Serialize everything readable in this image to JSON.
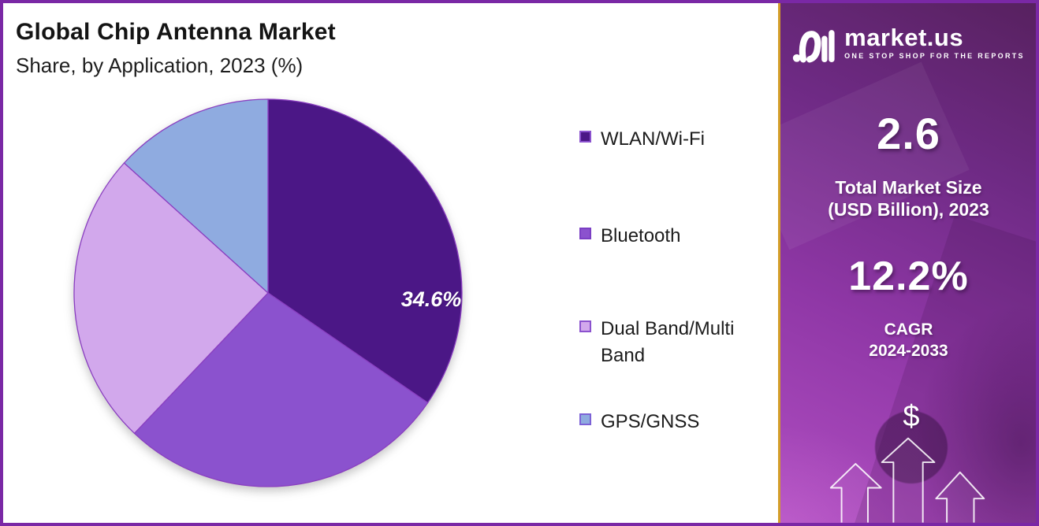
{
  "header": {
    "title": "Global Chip Antenna Market",
    "subtitle": "Share, by Application, 2023 (%)"
  },
  "chart_data": {
    "type": "pie",
    "title": "Global Chip Antenna Market",
    "subtitle": "Share, by Application, 2023 (%)",
    "unit": "percent",
    "start_angle_deg": 0,
    "direction": "clockwise",
    "legend_position": "right",
    "slice_stroke": "#8A3FC0",
    "segments": [
      {
        "label": "WLAN/Wi-Fi",
        "value": 34.6,
        "display_label": "34.6%",
        "color": "#4B1786",
        "swatch_border": "#8B52CE"
      },
      {
        "label": "Bluetooth",
        "value": 27.5,
        "display_label": "",
        "color": "#8B52CE",
        "swatch_border": "#7B3FC4"
      },
      {
        "label": "Dual Band/Multi Band",
        "value": 24.6,
        "display_label": "",
        "color": "#D2A8EC",
        "swatch_border": "#8B52CE"
      },
      {
        "label": "GPS/GNSS",
        "value": 13.3,
        "display_label": "",
        "color": "#8FABE0",
        "swatch_border": "#7C62D6"
      }
    ]
  },
  "sidebar": {
    "brand": {
      "name": "market.us",
      "tagline": "ONE STOP SHOP FOR THE REPORTS"
    },
    "stats": [
      {
        "value": "2.6",
        "label_line1": "Total Market Size",
        "label_line2": "(USD Billion), 2023"
      },
      {
        "value": "12.2%",
        "label_line1": "CAGR",
        "label_line2": "2024-2033"
      }
    ],
    "dollar_symbol": "$"
  },
  "colors": {
    "frame_border": "#7A28A5",
    "panel_border": "#D39E28",
    "panel_grad_dark": "#57215F",
    "panel_grad_mid": "#8F37A6",
    "panel_grad_light": "#B04EC2",
    "title_text": "#141414",
    "legend_text": "#1C1C1C",
    "pie_label_text": "#FFFFFF",
    "panel_text": "#FFFFFF"
  }
}
